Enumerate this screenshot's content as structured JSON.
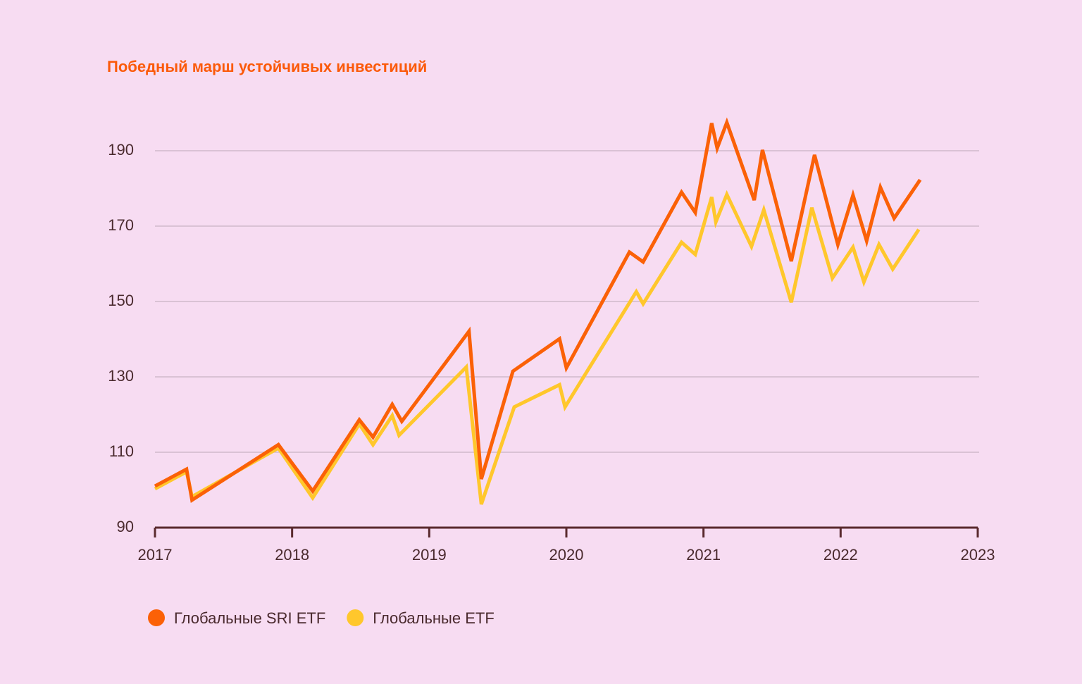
{
  "chart_data": {
    "type": "line",
    "title": "Победный марш устойчивых инвестиций",
    "xlim": [
      2017,
      2023
    ],
    "xticks": [
      2017,
      2018,
      2019,
      2020,
      2021,
      2022,
      2023
    ],
    "ylim": [
      90,
      200
    ],
    "yticks": [
      90,
      110,
      130,
      150,
      170,
      190
    ],
    "grid": true,
    "series": [
      {
        "name": "Глобальные SRI ETF",
        "color": "#fb6107",
        "x": [
          2017.0,
          2017.23,
          2017.27,
          2017.9,
          2018.15,
          2018.49,
          2018.59,
          2018.73,
          2018.8,
          2019.29,
          2019.38,
          2019.61,
          2019.95,
          2020.0,
          2020.46,
          2020.56,
          2020.84,
          2020.94,
          2021.06,
          2021.1,
          2021.17,
          2021.37,
          2021.43,
          2021.64,
          2021.81,
          2021.98,
          2022.09,
          2022.19,
          2022.29,
          2022.39,
          2022.58
        ],
        "values": [
          101,
          105.5,
          97.3,
          112,
          99.7,
          118.6,
          114,
          122.7,
          118.2,
          142.1,
          102.9,
          131.5,
          140.1,
          132.4,
          163.1,
          160.5,
          179,
          173.6,
          197.3,
          190.7,
          197.5,
          176.9,
          190.2,
          160.7,
          188.9,
          165.1,
          178.2,
          166.1,
          180.3,
          172.1,
          182.3
        ]
      },
      {
        "name": "Глобальные ETF",
        "color": "#ffc72c",
        "x": [
          2017.0,
          2017.23,
          2017.27,
          2017.9,
          2018.15,
          2018.49,
          2018.59,
          2018.73,
          2018.78,
          2019.27,
          2019.38,
          2019.62,
          2019.95,
          2019.99,
          2020.51,
          2020.56,
          2020.84,
          2020.94,
          2021.06,
          2021.09,
          2021.17,
          2021.35,
          2021.44,
          2021.64,
          2021.79,
          2021.94,
          2022.09,
          2022.17,
          2022.28,
          2022.38,
          2022.57
        ],
        "values": [
          100.3,
          104.8,
          98.2,
          111.1,
          97.9,
          117.5,
          112,
          119.7,
          114.5,
          132.6,
          96.2,
          122,
          127.9,
          122,
          152.6,
          149.4,
          165.7,
          162.5,
          177.7,
          171.1,
          178.4,
          164.6,
          174.3,
          149.8,
          174.9,
          156.2,
          164.4,
          155.2,
          165.1,
          158.6,
          169.1
        ]
      }
    ]
  }
}
